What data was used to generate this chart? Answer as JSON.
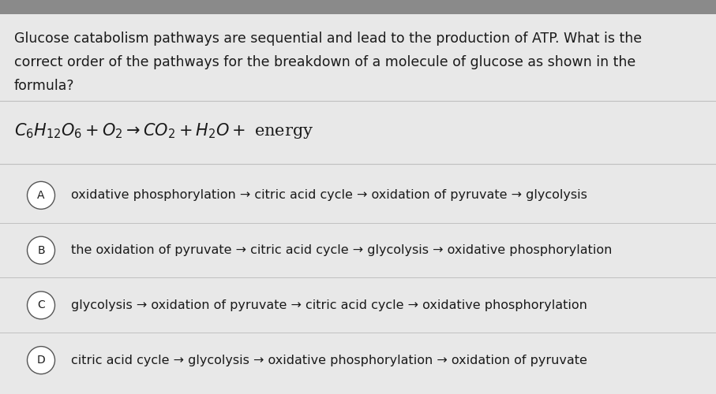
{
  "bg_color": "#e8e8e8",
  "top_bar_color": "#8a8a8a",
  "text_color": "#1a1a1a",
  "divider_color": "#c0c0c0",
  "circle_edge_color": "#555555",
  "question_lines": [
    "Glucose catabolism pathways are sequential and lead to the production of ATP. What is the",
    "correct order of the pathways for the breakdown of a molecule of glucose as shown in the",
    "formula?"
  ],
  "formula_str": "$C_6H_{12}O_6 + O_2 \\rightarrow CO_2 + H_2O +$ energy",
  "options": [
    {
      "label": "A",
      "text": "oxidative phosphorylation → citric acid cycle → oxidation of pyruvate → glycolysis"
    },
    {
      "label": "B",
      "text": "the oxidation of pyruvate → citric acid cycle → glycolysis → oxidative phosphorylation"
    },
    {
      "label": "C",
      "text": "glycolysis → oxidation of pyruvate → citric acid cycle → oxidative phosphorylation"
    },
    {
      "label": "D",
      "text": "citric acid cycle → glycolysis → oxidative phosphorylation → oxidation of pyruvate"
    }
  ],
  "question_fontsize": 12.5,
  "formula_fontsize": 15,
  "option_fontsize": 11.5,
  "label_fontsize": 10
}
